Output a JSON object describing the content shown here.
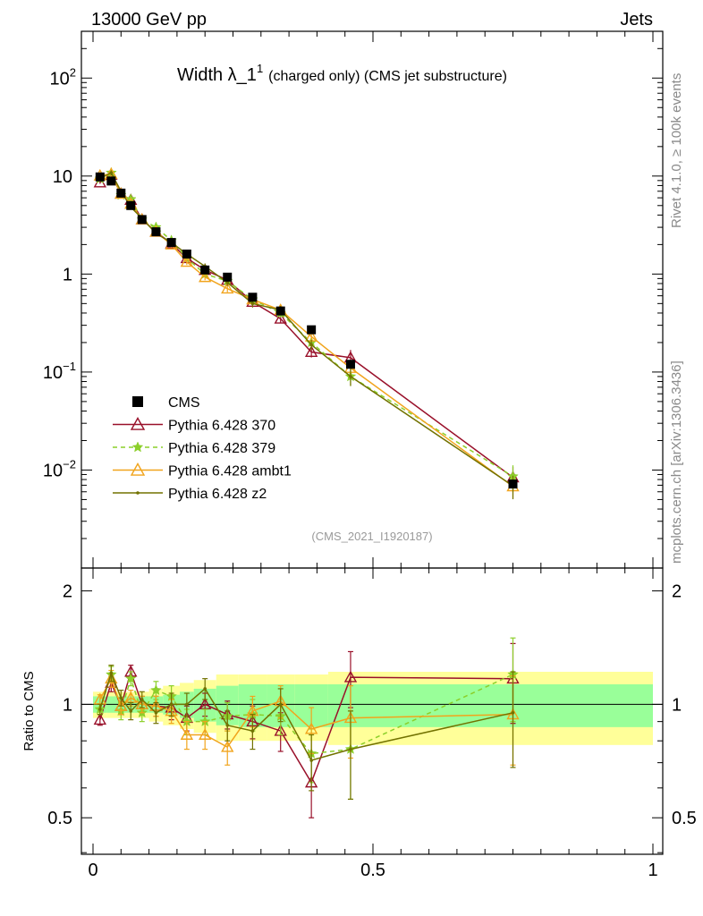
{
  "header": {
    "left": "13000 GeV pp",
    "right": "Jets"
  },
  "side": {
    "rivet": "Rivet 4.1.0, ≥ 100k events",
    "mcplots": "mcplots.cern.ch [arXiv:1306.3436]"
  },
  "chart_data": {
    "type": "line",
    "title": "Width λ_1",
    "title_sup": "1",
    "subtitle": "(charged only) (CMS jet substructure)",
    "analysis_label": "(CMS_2021_I1920187)",
    "xlim": [
      0,
      1
    ],
    "x_ticks": [
      "0",
      "0.5",
      "1"
    ],
    "main": {
      "yscale": "log",
      "ylim": [
        0.001,
        300
      ],
      "y_ticks": [
        {
          "value": 0.01,
          "base": "10",
          "exp": "−2"
        },
        {
          "value": 0.1,
          "base": "10",
          "exp": "−1"
        },
        {
          "value": 1,
          "base": "1",
          "exp": ""
        },
        {
          "value": 10,
          "base": "10",
          "exp": ""
        },
        {
          "value": 100,
          "base": "10",
          "exp": "2"
        }
      ]
    },
    "ratio": {
      "ylabel": "Ratio to CMS",
      "yscale": "log",
      "ylim": [
        0.4,
        2.3
      ],
      "y_ticks": [
        "0.5",
        "1",
        "2"
      ],
      "y_tick_values": [
        0.5,
        1,
        2
      ]
    },
    "x": [
      0.0125,
      0.0325,
      0.05,
      0.0675,
      0.0875,
      0.1125,
      0.14,
      0.1675,
      0.2,
      0.24,
      0.285,
      0.335,
      0.39,
      0.46,
      0.75
    ],
    "x_edges": [
      0,
      0.025,
      0.04,
      0.06,
      0.075,
      0.1,
      0.125,
      0.155,
      0.18,
      0.22,
      0.26,
      0.31,
      0.36,
      0.42,
      0.5,
      1.0
    ],
    "band_inner": [
      0.05,
      0.05,
      0.05,
      0.05,
      0.05,
      0.05,
      0.06,
      0.08,
      0.1,
      0.12,
      0.13,
      0.13,
      0.13,
      0.13,
      0.13
    ],
    "band_outer": [
      0.08,
      0.08,
      0.08,
      0.08,
      0.08,
      0.1,
      0.12,
      0.14,
      0.16,
      0.2,
      0.2,
      0.2,
      0.2,
      0.22,
      0.22
    ],
    "series": [
      {
        "name": "CMS",
        "color": "#000000",
        "marker": "square",
        "dash": "",
        "values": [
          9.8,
          8.9,
          6.7,
          5.0,
          3.6,
          2.7,
          2.1,
          1.6,
          1.1,
          0.93,
          0.58,
          0.42,
          0.27,
          0.12,
          0.0072
        ],
        "ratio": [
          1,
          1,
          1,
          1,
          1,
          1,
          1,
          1,
          1,
          1,
          1,
          1,
          1,
          1,
          1
        ],
        "ratio_err": [
          0,
          0,
          0,
          0,
          0,
          0,
          0,
          0,
          0,
          0,
          0,
          0,
          0,
          0,
          0
        ]
      },
      {
        "name": "Pythia 6.428 370",
        "color": "#99102a",
        "marker": "triangle",
        "dash": "",
        "values": [
          8.6,
          10.3,
          6.6,
          5.7,
          3.6,
          2.7,
          2.05,
          1.45,
          1.1,
          0.87,
          0.52,
          0.35,
          0.16,
          0.14,
          0.0084
        ],
        "ratio": [
          0.91,
          1.14,
          0.99,
          1.22,
          1.0,
          0.99,
          0.98,
          0.92,
          1.0,
          0.94,
          0.9,
          0.85,
          0.62,
          1.18,
          1.17
        ],
        "ratio_err": [
          0.03,
          0.06,
          0.05,
          0.05,
          0.05,
          0.06,
          0.07,
          0.07,
          0.07,
          0.08,
          0.09,
          0.1,
          0.12,
          0.2,
          0.28
        ]
      },
      {
        "name": "Pythia 6.428 379",
        "color": "#8ccf2a",
        "marker": "star",
        "dash": "5,4",
        "values": [
          9.4,
          10.8,
          6.4,
          5.8,
          3.6,
          3.0,
          2.2,
          1.45,
          1.0,
          0.85,
          0.55,
          0.4,
          0.2,
          0.09,
          0.0086
        ],
        "ratio": [
          0.97,
          1.2,
          0.96,
          1.17,
          0.95,
          1.09,
          1.05,
          0.9,
          0.9,
          0.93,
          0.94,
          0.93,
          0.74,
          0.76,
          1.2
        ],
        "ratio_err": [
          0.03,
          0.06,
          0.05,
          0.05,
          0.05,
          0.06,
          0.07,
          0.07,
          0.07,
          0.08,
          0.09,
          0.1,
          0.12,
          0.2,
          0.3
        ]
      },
      {
        "name": "Pythia 6.428 ambt1",
        "color": "#f1a41c",
        "marker": "triangle",
        "dash": "",
        "values": [
          10.1,
          10.5,
          6.6,
          5.2,
          3.6,
          2.7,
          2.0,
          1.33,
          0.93,
          0.71,
          0.55,
          0.43,
          0.23,
          0.11,
          0.0068
        ],
        "ratio": [
          1.03,
          1.17,
          0.99,
          1.04,
          1.0,
          0.99,
          0.96,
          0.83,
          0.83,
          0.77,
          0.96,
          1.02,
          0.86,
          0.92,
          0.94
        ],
        "ratio_err": [
          0.03,
          0.06,
          0.05,
          0.05,
          0.05,
          0.06,
          0.07,
          0.07,
          0.07,
          0.08,
          0.09,
          0.1,
          0.12,
          0.2,
          0.25
        ]
      },
      {
        "name": "Pythia 6.428 z2",
        "color": "#727200",
        "marker": "dot",
        "dash": "",
        "values": [
          9.5,
          10.8,
          7.0,
          4.8,
          3.7,
          2.6,
          2.1,
          1.6,
          1.2,
          0.82,
          0.5,
          0.43,
          0.19,
          0.09,
          0.0069
        ],
        "ratio": [
          0.97,
          1.21,
          1.04,
          0.96,
          1.03,
          0.95,
          1.0,
          1.0,
          1.1,
          0.88,
          0.85,
          1.0,
          0.71,
          0.76,
          0.95
        ],
        "ratio_err": [
          0.03,
          0.06,
          0.05,
          0.05,
          0.05,
          0.06,
          0.07,
          0.07,
          0.07,
          0.08,
          0.09,
          0.1,
          0.12,
          0.2,
          0.27
        ]
      }
    ]
  }
}
